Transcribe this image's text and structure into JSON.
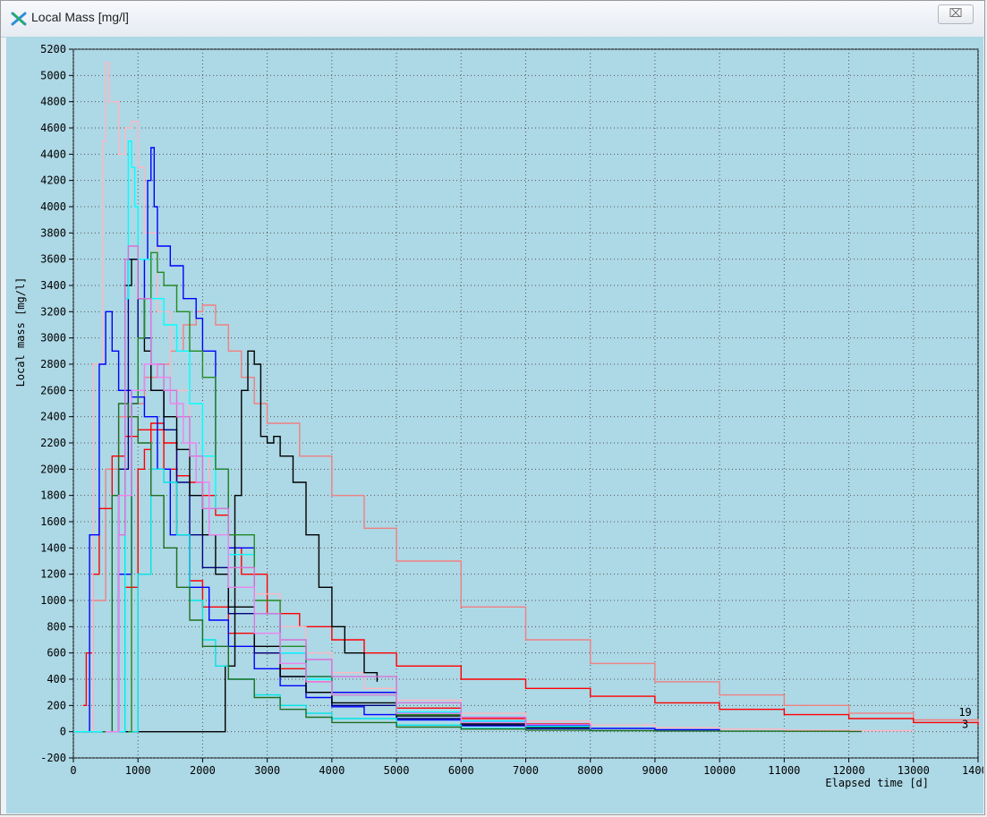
{
  "window": {
    "title": "Local Mass [mg/l]",
    "close_label": "⌧",
    "app_icon": "cross-icon"
  },
  "colors": {
    "plot_background": "#add8e6",
    "grid": "#555555"
  },
  "chart_data": {
    "type": "line",
    "title": "",
    "xlabel": "Elapsed time [d]",
    "ylabel": "Local mass [mg/l]",
    "xlim": [
      0,
      14000
    ],
    "ylim": [
      -200,
      5200
    ],
    "x_ticks": [
      0,
      1000,
      2000,
      3000,
      4000,
      5000,
      6000,
      7000,
      8000,
      9000,
      10000,
      11000,
      12000,
      13000,
      14000
    ],
    "y_ticks": [
      -200,
      0,
      200,
      400,
      600,
      800,
      1000,
      1200,
      1400,
      1600,
      1800,
      2000,
      2200,
      2400,
      2600,
      2800,
      3000,
      3200,
      3400,
      3600,
      3800,
      4000,
      4200,
      4400,
      4600,
      4800,
      5000,
      5200
    ],
    "grid": true,
    "annotations": [
      {
        "text": "19",
        "x": 13800,
        "y": 120,
        "color": "#ff4d4d"
      },
      {
        "text": "3",
        "x": 13800,
        "y": 30,
        "color": "#000000"
      }
    ],
    "series": [
      {
        "color": "#f08080",
        "x": [
          150,
          300,
          500,
          700,
          900,
          1100,
          1300,
          1500,
          1700,
          1900,
          2000,
          2200,
          2400,
          2600,
          2800,
          3000,
          3500,
          4000,
          4500,
          5000,
          6000,
          7000,
          8000,
          9000,
          10000,
          11000,
          12000,
          13000,
          14000
        ],
        "y": [
          0,
          1000,
          2000,
          2400,
          2500,
          2700,
          2800,
          2900,
          3100,
          3200,
          3250,
          3100,
          2900,
          2700,
          2500,
          2350,
          2100,
          1800,
          1550,
          1300,
          950,
          700,
          520,
          380,
          280,
          200,
          140,
          90,
          50
        ]
      },
      {
        "color": "#ff0000",
        "x": [
          150,
          200,
          300,
          400,
          600,
          800,
          1000,
          1200,
          1400,
          1600,
          1800,
          2000,
          2200,
          2400,
          2600,
          3000,
          3500,
          4000,
          4500,
          5000,
          6000,
          7000,
          8000,
          9000,
          10000,
          11000,
          12000,
          13000,
          14000
        ],
        "y": [
          200,
          600,
          1200,
          1700,
          2100,
          2250,
          2300,
          2350,
          2200,
          1950,
          1900,
          1800,
          1650,
          1400,
          1200,
          900,
          800,
          700,
          600,
          500,
          400,
          330,
          270,
          220,
          170,
          130,
          100,
          70,
          50
        ]
      },
      {
        "color": "#ff0000",
        "x": [
          400,
          600,
          800,
          1000,
          1100,
          1200,
          1400,
          1600,
          1800,
          2000,
          2400,
          2800,
          3200,
          3600,
          4000,
          5000,
          6000,
          7000,
          8000
        ],
        "y": [
          0,
          0,
          1100,
          2000,
          2150,
          2300,
          2000,
          1500,
          1150,
          950,
          750,
          600,
          480,
          380,
          300,
          180,
          100,
          60,
          40
        ]
      },
      {
        "color": "#ffb6c1",
        "x": [
          50,
          300,
          450,
          500,
          550,
          700,
          800,
          900,
          1000,
          1100,
          1300,
          1500,
          1800,
          2100,
          2400,
          2800,
          3200,
          3600,
          4000,
          4500,
          5000,
          6000,
          7000,
          8000,
          9000,
          10000,
          11000,
          12000,
          13000
        ],
        "y": [
          0,
          2800,
          4500,
          5100,
          4800,
          4400,
          4600,
          4650,
          4300,
          3800,
          3200,
          2600,
          2100,
          1700,
          1350,
          1050,
          800,
          600,
          450,
          330,
          240,
          140,
          80,
          50,
          30,
          20,
          12,
          8,
          5
        ]
      },
      {
        "color": "#0000ff",
        "x": [
          150,
          250,
          400,
          500,
          600,
          700,
          900,
          1100,
          1300,
          1500,
          1800,
          2100,
          2400,
          2800,
          3200,
          3600,
          4000,
          4500,
          5000,
          6000,
          7000,
          8000
        ],
        "y": [
          0,
          1500,
          2800,
          3200,
          2900,
          2600,
          2550,
          2400,
          2000,
          1500,
          1100,
          850,
          650,
          480,
          350,
          260,
          190,
          130,
          90,
          45,
          25,
          15
        ]
      },
      {
        "color": "#0000ff",
        "x": [
          500,
          700,
          900,
          1000,
          1100,
          1150,
          1200,
          1250,
          1300,
          1500,
          1700,
          1900,
          2000,
          2200,
          2400,
          2800,
          3200,
          3600,
          4000,
          5000,
          6000,
          7000,
          8000,
          9000,
          10000
        ],
        "y": [
          0,
          1200,
          2500,
          3000,
          3600,
          4200,
          4450,
          4000,
          3700,
          3550,
          3300,
          3150,
          2900,
          2000,
          1400,
          900,
          600,
          420,
          300,
          150,
          80,
          45,
          25,
          15,
          8
        ]
      },
      {
        "color": "#000080",
        "x": [
          500,
          700,
          850,
          1000,
          1200,
          1400,
          1600,
          1800,
          2000,
          2400,
          2800,
          3200,
          3600,
          4000,
          5000,
          6000,
          7000
        ],
        "y": [
          0,
          2000,
          3600,
          3000,
          2600,
          2300,
          1900,
          1500,
          1250,
          900,
          600,
          420,
          300,
          200,
          100,
          50,
          25
        ]
      },
      {
        "color": "#000000",
        "x": [
          500,
          800,
          900,
          1000,
          1100,
          1200,
          1400,
          1600,
          1800,
          2000,
          2200,
          2400,
          2800,
          3200,
          3600,
          4000,
          5000,
          6000,
          7000,
          8000
        ],
        "y": [
          0,
          3400,
          3600,
          3300,
          2900,
          2600,
          2400,
          2150,
          1800,
          1500,
          1200,
          950,
          650,
          420,
          300,
          220,
          120,
          60,
          30,
          15
        ]
      },
      {
        "color": "#000000",
        "x": [
          0,
          2300,
          2350,
          2500,
          2600,
          2700,
          2800,
          2900,
          3000,
          3100,
          3200,
          3400,
          3600,
          3800,
          4000,
          4200,
          4500,
          4700
        ],
        "y": [
          0,
          0,
          500,
          1800,
          2600,
          2900,
          2800,
          2250,
          2200,
          2250,
          2100,
          1900,
          1500,
          1100,
          800,
          600,
          450,
          380
        ]
      },
      {
        "color": "#00ffff",
        "x": [
          0,
          700,
          800,
          850,
          900,
          950,
          1000,
          1200,
          1400,
          1600,
          1800,
          2000,
          2200,
          2400,
          2800,
          3200,
          3600,
          4000,
          5000,
          6000,
          7000,
          8000
        ],
        "y": [
          0,
          0,
          3300,
          4500,
          4300,
          4000,
          3600,
          3300,
          3100,
          2900,
          2500,
          2100,
          1700,
          1350,
          900,
          600,
          400,
          280,
          150,
          80,
          40,
          20
        ]
      },
      {
        "color": "#00e5e5",
        "x": [
          850,
          1000,
          1200,
          1400,
          1600,
          1800,
          2000,
          2200,
          2400,
          2800,
          3200,
          3600,
          4000,
          5000,
          6000,
          7000
        ],
        "y": [
          0,
          1200,
          2000,
          1900,
          1500,
          1000,
          700,
          500,
          400,
          280,
          200,
          140,
          100,
          50,
          25,
          12
        ]
      },
      {
        "color": "#228b22",
        "x": [
          850,
          900,
          1000,
          1100,
          1200,
          1300,
          1400,
          1600,
          1800,
          2000,
          2200,
          2400,
          2800,
          3200,
          3600,
          4000,
          5000,
          6000
        ],
        "y": [
          0,
          2500,
          3000,
          3300,
          3650,
          3500,
          3400,
          3200,
          2900,
          2700,
          2000,
          1500,
          1000,
          650,
          420,
          280,
          130,
          60
        ]
      },
      {
        "color": "#1e6e1e",
        "x": [
          450,
          600,
          700,
          850,
          1000,
          1200,
          1400,
          1600,
          1800,
          2000,
          2400,
          2800,
          3200,
          3600,
          4000,
          5000,
          6000,
          7000,
          8000,
          9000,
          10000,
          11000,
          12000,
          12200
        ],
        "y": [
          0,
          1800,
          2500,
          2400,
          2200,
          1800,
          1400,
          1100,
          850,
          650,
          400,
          260,
          170,
          110,
          70,
          35,
          20,
          12,
          8,
          5,
          4,
          3,
          2,
          2
        ]
      },
      {
        "color": "#da70d6",
        "x": [
          500,
          700,
          800,
          850,
          1000,
          1200,
          1400,
          1600,
          1800,
          2000,
          2400,
          2800,
          3200,
          3600,
          4000,
          5000,
          6000,
          7000,
          8000
        ],
        "y": [
          0,
          1500,
          3600,
          3700,
          3300,
          2800,
          2600,
          2400,
          2100,
          1700,
          1250,
          900,
          700,
          550,
          420,
          220,
          110,
          55,
          25
        ]
      },
      {
        "color": "#ee82ee",
        "x": [
          500,
          700,
          900,
          1100,
          1300,
          1500,
          1700,
          1900,
          2100,
          2400,
          2800,
          3200,
          3600,
          4000,
          5000,
          6000,
          7000
        ],
        "y": [
          0,
          1800,
          2600,
          2800,
          2700,
          2500,
          2200,
          1900,
          1500,
          1100,
          750,
          520,
          380,
          280,
          140,
          70,
          35
        ]
      }
    ]
  }
}
